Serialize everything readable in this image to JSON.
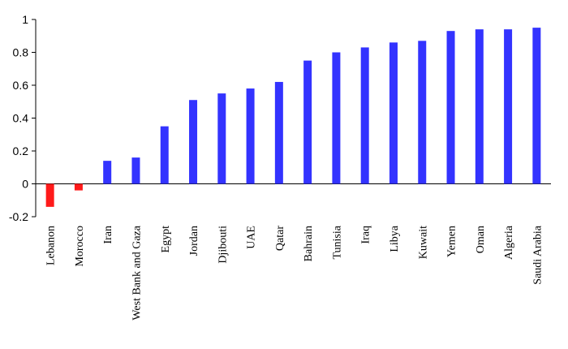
{
  "chart_data": {
    "type": "bar",
    "title": "",
    "xlabel": "",
    "ylabel": "",
    "ylim": [
      -0.2,
      1
    ],
    "yticks": [
      -0.2,
      0,
      0.2,
      0.4,
      0.6,
      0.8,
      1
    ],
    "ytick_labels": [
      "-0.2",
      "0",
      "0.2",
      "0.4",
      "0.6",
      "0.8",
      "1"
    ],
    "grid": false,
    "legend": "none",
    "colors": {
      "positive": "#3333ff",
      "negative": "#ff1a1a"
    },
    "categories": [
      "Lebanon",
      "Morocco",
      "Iran",
      "West Bank and Gaza",
      "Egypt",
      "Jordan",
      "Djibouti",
      "UAE",
      "Qatar",
      "Bahrain",
      "Tunisia",
      "Iraq",
      "Libya",
      "Kuwait",
      "Yemen",
      "Oman",
      "Algeria",
      "Saudi Arabia"
    ],
    "values": [
      -0.14,
      -0.04,
      0.14,
      0.16,
      0.35,
      0.51,
      0.55,
      0.58,
      0.62,
      0.75,
      0.8,
      0.83,
      0.86,
      0.87,
      0.93,
      0.94,
      0.94,
      0.95
    ]
  }
}
